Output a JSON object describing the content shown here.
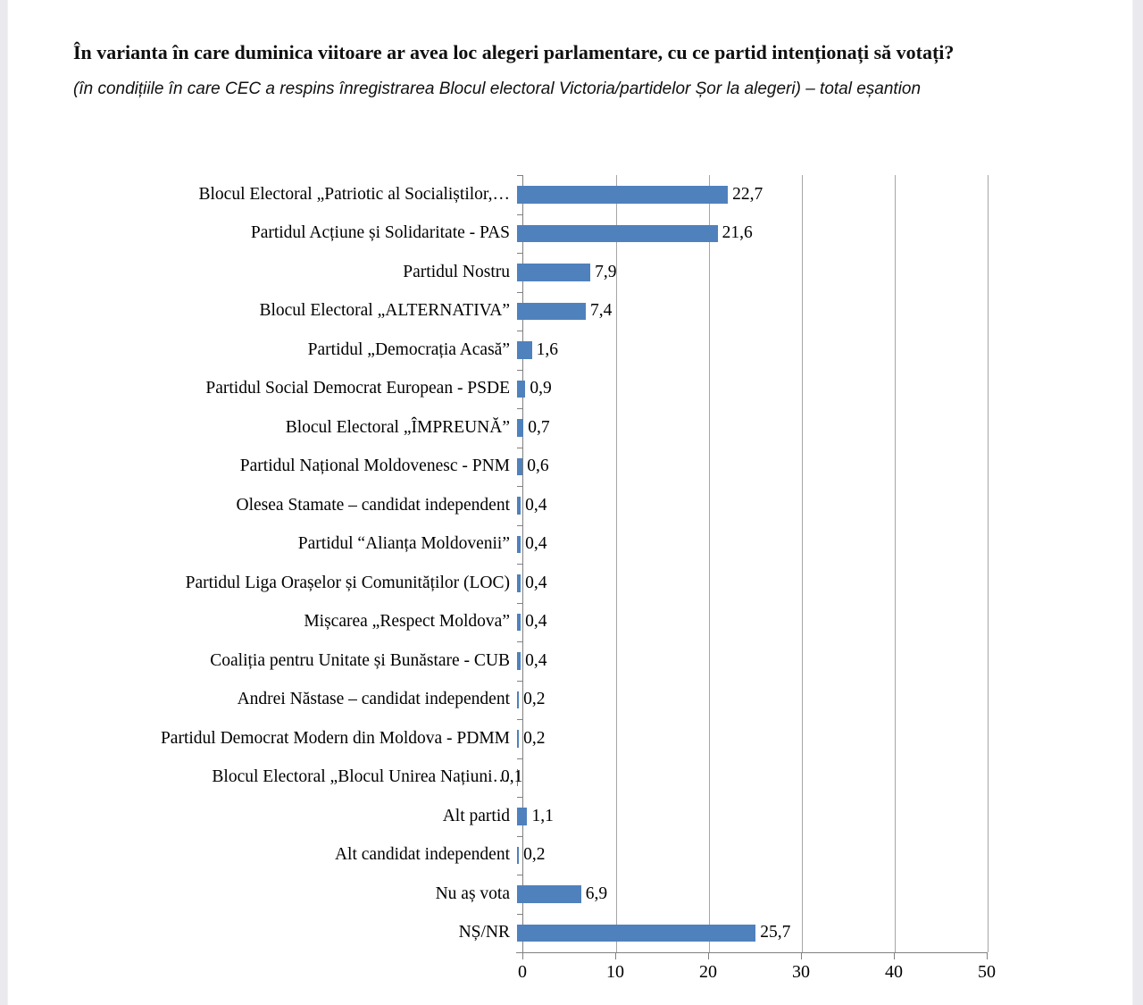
{
  "page": {
    "title": "În varianta în care duminica viitoare ar avea loc alegeri parlamentare, cu ce partid intenționați să votați?",
    "subtitle": "(în condițiile în care CEC a respins înregistrarea Blocul electoral Victoria/partidelor Șor la alegeri) – total eșantion"
  },
  "chart_data": {
    "type": "bar",
    "orientation": "horizontal",
    "title": "",
    "xlabel": "",
    "ylabel": "",
    "xlim": [
      0,
      50
    ],
    "x_ticks": [
      0,
      10,
      20,
      30,
      40,
      50
    ],
    "grid": true,
    "legend": false,
    "bar_color": "#4f81bd",
    "gridline_color": "#a6a6a6",
    "axis_color": "#808080",
    "categories": [
      "Blocul Electoral „Patriotic al Socialiștilor,…",
      "Partidul Acțiune și Solidaritate - PAS",
      "Partidul Nostru",
      "Blocul Electoral „ALTERNATIVA”",
      "Partidul „Democrația Acasă”",
      "Partidul Social Democrat European - PSDE",
      "Blocul Electoral „ÎMPREUNĂ”",
      "Partidul Național Moldovenesc - PNM",
      "Olesea Stamate – candidat independent",
      "Partidul “Alianța Moldovenii”",
      "Partidul Liga Orașelor și Comunităților (LOC)",
      "Mișcarea „Respect Moldova”",
      "Coaliția pentru Unitate și Bunăstare - CUB",
      "Andrei Năstase – candidat independent",
      "Partidul Democrat Modern din Moldova - PDMM",
      "Blocul Electoral „Blocul Unirea Națiuni…",
      "Alt partid",
      "Alt candidat independent",
      "Nu aș vota",
      "NȘ/NR"
    ],
    "values": [
      22.7,
      21.6,
      7.9,
      7.4,
      1.6,
      0.9,
      0.7,
      0.6,
      0.4,
      0.4,
      0.4,
      0.4,
      0.4,
      0.2,
      0.2,
      0.1,
      1.1,
      0.2,
      6.9,
      25.7
    ],
    "value_labels": [
      "22,7",
      "21,6",
      "7,9",
      "7,4",
      "1,6",
      "0,9",
      "0,7",
      "0,6",
      "0,4",
      "0,4",
      "0,4",
      "0,4",
      "0,4",
      "0,2",
      "0,2",
      "0,1",
      "1,1",
      "0,2",
      "6,9",
      "25,7"
    ],
    "value_label_overlap_index": 15
  }
}
